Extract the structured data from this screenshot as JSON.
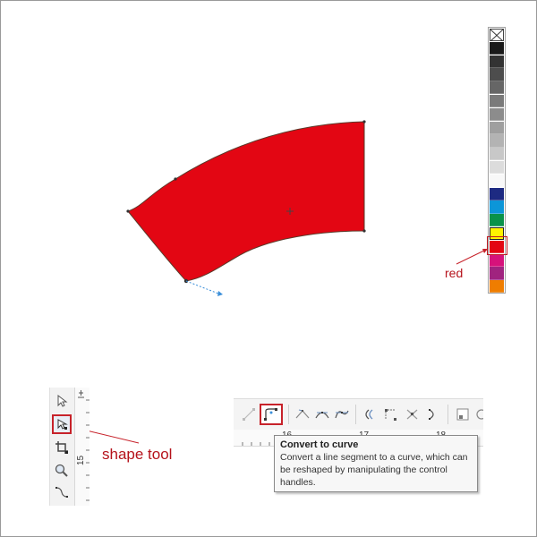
{
  "colors": {
    "fill_red": "#e30613",
    "annotation_red": "#b5121b",
    "highlight_border": "#c7222a",
    "guide_blue": "#3b8fd9"
  },
  "palette": {
    "swatches": [
      {
        "name": "none",
        "color": "none"
      },
      {
        "name": "black",
        "color": "#1a1a1a"
      },
      {
        "name": "gray-90",
        "color": "#333333"
      },
      {
        "name": "gray-80",
        "color": "#4d4d4d"
      },
      {
        "name": "gray-70",
        "color": "#666666"
      },
      {
        "name": "gray-60",
        "color": "#7a7a7a"
      },
      {
        "name": "gray-50",
        "color": "#8c8c8c"
      },
      {
        "name": "gray-40",
        "color": "#9f9f9f"
      },
      {
        "name": "gray-30",
        "color": "#b3b3b3"
      },
      {
        "name": "gray-20",
        "color": "#c8c8c8"
      },
      {
        "name": "gray-10",
        "color": "#dcdcdc"
      },
      {
        "name": "white",
        "color": "#f8f8f8"
      },
      {
        "name": "navy",
        "color": "#1d2a82"
      },
      {
        "name": "sky-blue",
        "color": "#0c96d8"
      },
      {
        "name": "green",
        "color": "#09924a"
      },
      {
        "name": "yellow",
        "color": "#fff200"
      },
      {
        "name": "red",
        "color": "#e30613"
      },
      {
        "name": "magenta",
        "color": "#d6127b"
      },
      {
        "name": "purple",
        "color": "#a0237f"
      },
      {
        "name": "orange",
        "color": "#ef7d00"
      }
    ],
    "red_label": "red"
  },
  "toolbox": {
    "tools": [
      {
        "name": "pick-tool",
        "icon": "pointer-arrow-icon"
      },
      {
        "name": "shape-tool",
        "icon": "shape-node-icon",
        "active": true
      },
      {
        "name": "crop-tool",
        "icon": "crop-icon"
      },
      {
        "name": "zoom-tool",
        "icon": "magnifier-icon"
      },
      {
        "name": "freehand-tool",
        "icon": "curve-line-icon"
      }
    ],
    "ruler_label": "15",
    "shape_tool_label": "shape tool"
  },
  "property_bar": {
    "buttons": [
      {
        "name": "convert-to-line",
        "icon": "line-segment-icon"
      },
      {
        "name": "convert-to-curve",
        "icon": "curve-segment-icon",
        "active": true
      },
      {
        "name": "cusp-node",
        "icon": "cusp-node-icon"
      },
      {
        "name": "smooth-node",
        "icon": "smooth-node-icon"
      },
      {
        "name": "symmetrical-node",
        "icon": "symmetric-node-icon"
      },
      {
        "name": "reverse-direction",
        "icon": "reverse-icon"
      },
      {
        "name": "extend-curve",
        "icon": "extend-curve-icon"
      },
      {
        "name": "extract-subpath",
        "icon": "extract-icon"
      },
      {
        "name": "join-nodes",
        "icon": "join-icon"
      },
      {
        "name": "select-all-nodes",
        "icon": "select-nodes-icon"
      }
    ],
    "ruler_numbers": [
      "16",
      "17",
      "18"
    ]
  },
  "tooltip": {
    "title": "Convert to curve",
    "line1": "Convert a line segment to a curve, which can",
    "line2": "be reshaped by manipulating the control",
    "line3": "handles."
  }
}
